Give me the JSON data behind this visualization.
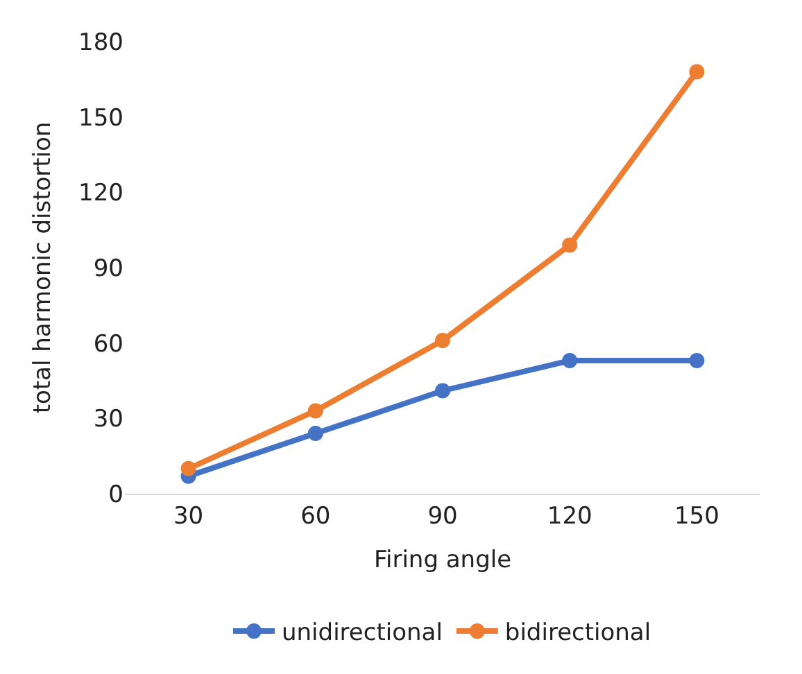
{
  "chart_data": {
    "type": "line",
    "xlabel": "Firing angle",
    "ylabel": "total harmonic distortion",
    "categories": [
      "30",
      "60",
      "90",
      "120",
      "150"
    ],
    "series": [
      {
        "name": "unidirectional",
        "color": "#4472c4",
        "values": [
          7,
          24,
          41,
          53,
          53
        ]
      },
      {
        "name": "bidirectional",
        "color": "#ed7d31",
        "values": [
          10,
          33,
          61,
          99,
          168
        ]
      }
    ],
    "ylim": [
      0,
      180
    ],
    "yticks": [
      0,
      30,
      60,
      90,
      120,
      150,
      180
    ],
    "grid": false,
    "legend": "bottom",
    "marker": "circle",
    "line_style": "solid"
  }
}
